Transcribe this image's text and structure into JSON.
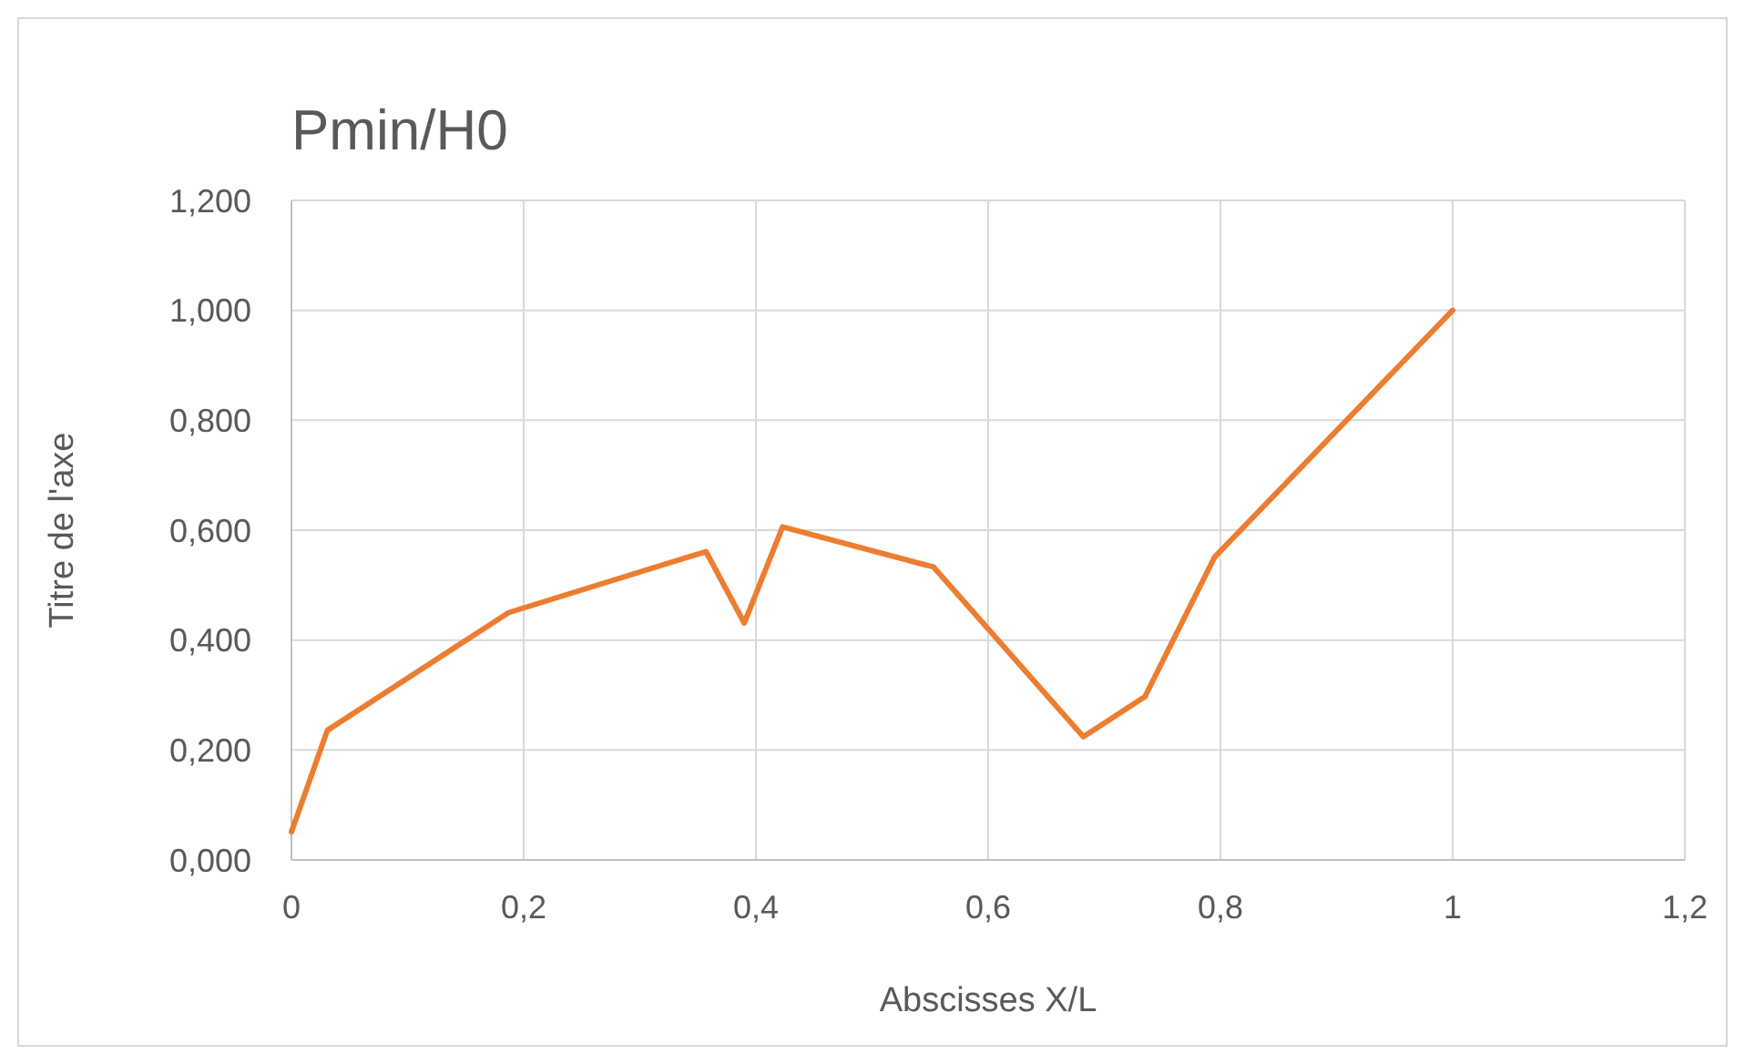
{
  "chart_data": {
    "type": "line",
    "title": "Pmin/H0",
    "xlabel": "Abscisses X/L",
    "ylabel": "Titre de l'axe",
    "x": [
      0,
      0.031,
      0.187,
      0.357,
      0.39,
      0.423,
      0.553,
      0.682,
      0.735,
      0.795,
      1.0
    ],
    "series": [
      {
        "color": "#ed7d31",
        "values": [
          0.051,
          0.236,
          0.45,
          0.561,
          0.431,
          0.606,
          0.533,
          0.224,
          0.297,
          0.551,
          1.0
        ]
      }
    ],
    "xlim": [
      0,
      1.2
    ],
    "xticks": [
      0,
      {
        "value": 0.2,
        "label": "0,2"
      },
      {
        "value": 0.4,
        "label": "0,4"
      },
      {
        "value": 0.6,
        "label": "0,6"
      },
      {
        "value": 0.8,
        "label": "0,8"
      },
      1,
      {
        "value": 1.2,
        "label": "1,2"
      }
    ],
    "ylim": [
      0,
      1.2
    ],
    "yticks": [
      {
        "value": 0,
        "label": "0,000"
      },
      {
        "value": 0.2,
        "label": "0,200"
      },
      {
        "value": 0.4,
        "label": "0,400"
      },
      {
        "value": 0.6,
        "label": "0,600"
      },
      {
        "value": 0.8,
        "label": "0,800"
      },
      {
        "value": 1,
        "label": "1,000"
      },
      {
        "value": 1.2,
        "label": "1,200"
      }
    ],
    "grid": true,
    "marker": "none",
    "line_style": "solid"
  }
}
